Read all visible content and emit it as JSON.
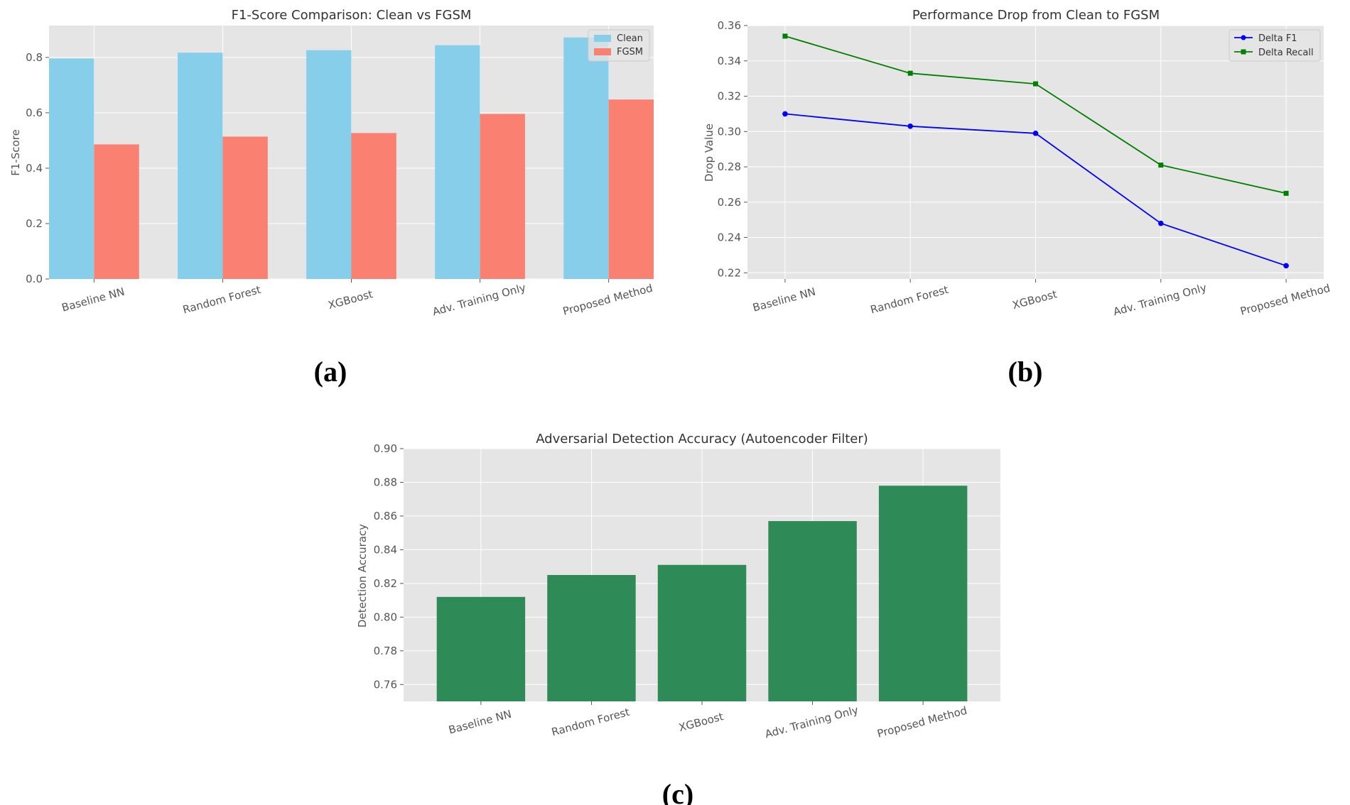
{
  "chart_data": [
    {
      "id": "a",
      "type": "bar",
      "panel_label": "(a)",
      "title": "F1-Score Comparison: Clean vs FGSM",
      "xlabel": "",
      "ylabel": "F1-Score",
      "categories": [
        "Baseline NN",
        "Random Forest",
        "XGBoost",
        "Adv. Training Only",
        "Proposed Method"
      ],
      "series": [
        {
          "name": "Clean",
          "color": "#87ceeb",
          "values": [
            0.796,
            0.817,
            0.826,
            0.844,
            0.872
          ]
        },
        {
          "name": "FGSM",
          "color": "#fa8072",
          "values": [
            0.486,
            0.514,
            0.527,
            0.596,
            0.648
          ]
        }
      ],
      "ylim": [
        0,
        0.915
      ],
      "yticks": [
        0.0,
        0.2,
        0.4,
        0.6,
        0.8
      ],
      "ytick_labels": [
        "0.0",
        "0.2",
        "0.4",
        "0.6",
        "0.8"
      ],
      "grid": true,
      "legend": "top-right"
    },
    {
      "id": "b",
      "type": "line",
      "panel_label": "(b)",
      "title": "Performance Drop from Clean to FGSM",
      "xlabel": "",
      "ylabel": "Drop Value",
      "categories": [
        "Baseline NN",
        "Random Forest",
        "XGBoost",
        "Adv. Training Only",
        "Proposed Method"
      ],
      "series": [
        {
          "name": "Delta F1",
          "color": "#0000ff",
          "marker": "circle",
          "values": [
            0.31,
            0.303,
            0.299,
            0.248,
            0.224
          ]
        },
        {
          "name": "Delta Recall",
          "color": "#008000",
          "marker": "square",
          "values": [
            0.354,
            0.333,
            0.327,
            0.281,
            0.265
          ]
        }
      ],
      "ylim": [
        0.2165,
        0.36
      ],
      "yticks": [
        0.22,
        0.24,
        0.26,
        0.28,
        0.3,
        0.32,
        0.34,
        0.36
      ],
      "ytick_labels": [
        "0.22",
        "0.24",
        "0.26",
        "0.28",
        "0.30",
        "0.32",
        "0.34",
        "0.36"
      ],
      "grid": true,
      "legend": "top-right"
    },
    {
      "id": "c",
      "type": "bar",
      "panel_label": "(c)",
      "title": "Adversarial Detection Accuracy (Autoencoder Filter)",
      "xlabel": "",
      "ylabel": "Detection Accuracy",
      "categories": [
        "Baseline NN",
        "Random Forest",
        "XGBoost",
        "Adv. Training Only",
        "Proposed Method"
      ],
      "series": [
        {
          "name": "",
          "color": "#2e8b57",
          "values": [
            0.812,
            0.825,
            0.831,
            0.857,
            0.878
          ]
        }
      ],
      "ylim": [
        0.75,
        0.9
      ],
      "yticks": [
        0.76,
        0.78,
        0.8,
        0.82,
        0.84,
        0.86,
        0.88,
        0.9
      ],
      "ytick_labels": [
        "0.76",
        "0.78",
        "0.80",
        "0.82",
        "0.84",
        "0.86",
        "0.88",
        "0.90"
      ],
      "grid": true,
      "legend": "none"
    }
  ]
}
